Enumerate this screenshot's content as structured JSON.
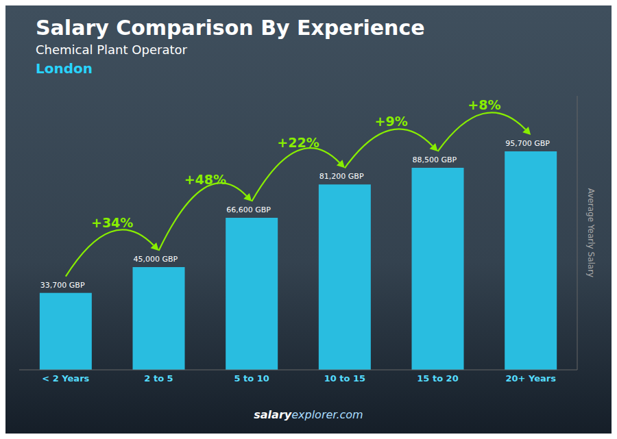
{
  "chart_data": {
    "type": "bar",
    "title": "Salary Comparison By Experience",
    "subtitle": "Chemical Plant Operator",
    "annotations": [
      "London",
      "salary",
      "explorer.com"
    ],
    "ylabel": "Average Yearly Salary",
    "categories": [
      "< 2 Years",
      "2 to 5",
      "5 to 10",
      "10 to 15",
      "15 to 20",
      "20+ Years"
    ],
    "values": [
      33700,
      45000,
      66600,
      81200,
      88500,
      95700
    ],
    "value_labels": [
      "33,700 GBP",
      "45,000 GBP",
      "66,600 GBP",
      "81,200 GBP",
      "88,500 GBP",
      "95,700 GBP"
    ],
    "data_labels": true,
    "change_labels": [
      "+34%",
      "+48%",
      "+22%",
      "+9%",
      "+8%"
    ],
    "color": "#29bde0",
    "ylim": [
      0,
      120000
    ],
    "tick_labels": "x",
    "grid": false
  }
}
